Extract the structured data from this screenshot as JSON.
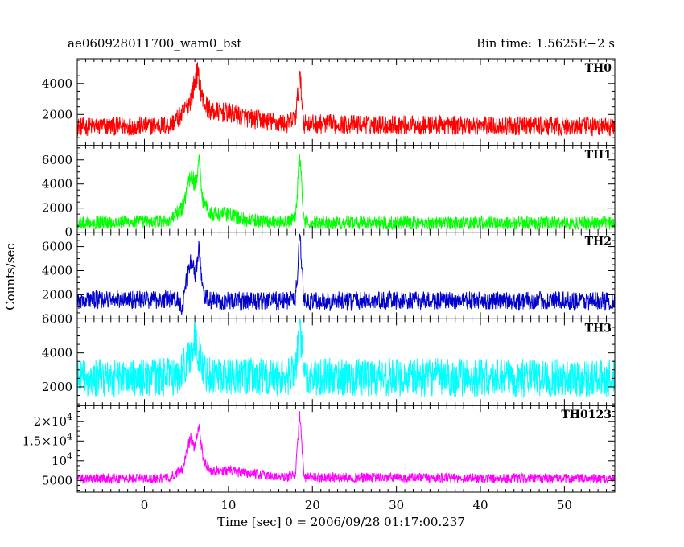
{
  "chart_data": {
    "type": "line",
    "title_left": "ae060928011700_wam0_bst",
    "title_right": "Bin time: 1.5625E−2 s",
    "xlabel": "Time [sec] 0 = 2006/09/28 01:17:00.237",
    "ylabel": "Counts/sec",
    "xlim": [
      -8,
      56
    ],
    "x_ticks": [
      0,
      10,
      20,
      30,
      40,
      50
    ],
    "x_tick_labels": [
      "0",
      "10",
      "20",
      "30",
      "40",
      "50"
    ],
    "panels": [
      {
        "name": "TH0",
        "color": "#ff0000",
        "ylim": [
          0,
          5600
        ],
        "y_ticks": [
          2000,
          4000
        ],
        "y_tick_labels": [
          {
            "mantissa": "2000",
            "exp": ""
          },
          {
            "mantissa": "4000",
            "exp": ""
          }
        ],
        "profile": [
          [
            -8,
            1200
          ],
          [
            3,
            1300
          ],
          [
            4.5,
            2000
          ],
          [
            5.5,
            3000
          ],
          [
            6.3,
            4700
          ],
          [
            7,
            2800
          ],
          [
            8,
            2200
          ],
          [
            10,
            2100
          ],
          [
            12,
            1800
          ],
          [
            14,
            1600
          ],
          [
            17,
            1400
          ],
          [
            18,
            1800
          ],
          [
            18.5,
            4500
          ],
          [
            19,
            1400
          ],
          [
            56,
            1200
          ]
        ],
        "noise": 700
      },
      {
        "name": "TH1",
        "color": "#00ff00",
        "ylim": [
          0,
          7200
        ],
        "y_ticks": [
          0,
          2000,
          4000,
          6000
        ],
        "y_tick_labels": [
          {
            "mantissa": "0",
            "exp": ""
          },
          {
            "mantissa": "2000",
            "exp": ""
          },
          {
            "mantissa": "4000",
            "exp": ""
          },
          {
            "mantissa": "6000",
            "exp": ""
          }
        ],
        "profile": [
          [
            -8,
            800
          ],
          [
            3,
            900
          ],
          [
            4.5,
            2000
          ],
          [
            5.5,
            4800
          ],
          [
            6,
            4000
          ],
          [
            6.5,
            5800
          ],
          [
            7,
            2500
          ],
          [
            8,
            1500
          ],
          [
            10,
            1500
          ],
          [
            12,
            1000
          ],
          [
            17,
            800
          ],
          [
            18,
            1200
          ],
          [
            18.5,
            6500
          ],
          [
            19,
            800
          ],
          [
            56,
            750
          ]
        ],
        "noise": 650
      },
      {
        "name": "TH2",
        "color": "#0000cc",
        "ylim": [
          0,
          7200
        ],
        "y_ticks": [
          2000,
          4000,
          6000
        ],
        "y_tick_labels": [
          {
            "mantissa": "2000",
            "exp": ""
          },
          {
            "mantissa": "4000",
            "exp": ""
          },
          {
            "mantissa": "6000",
            "exp": ""
          }
        ],
        "profile": [
          [
            -8,
            1600
          ],
          [
            4,
            1600
          ],
          [
            4.5,
            1000
          ],
          [
            5.5,
            5000
          ],
          [
            6,
            3500
          ],
          [
            6.5,
            5800
          ],
          [
            7,
            1800
          ],
          [
            8,
            1500
          ],
          [
            17,
            1500
          ],
          [
            18,
            1800
          ],
          [
            18.5,
            6500
          ],
          [
            19,
            1500
          ],
          [
            56,
            1500
          ]
        ],
        "noise": 900
      },
      {
        "name": "TH3",
        "color": "#00ffff",
        "ylim": [
          900,
          6000
        ],
        "y_ticks": [
          2000,
          4000,
          6000
        ],
        "y_tick_labels": [
          {
            "mantissa": "2000",
            "exp": ""
          },
          {
            "mantissa": "4000",
            "exp": ""
          },
          {
            "mantissa": "6000",
            "exp": ""
          }
        ],
        "profile": [
          [
            -8,
            2500
          ],
          [
            4,
            2600
          ],
          [
            5,
            3500
          ],
          [
            6,
            4600
          ],
          [
            6.5,
            4000
          ],
          [
            7,
            3000
          ],
          [
            8,
            2700
          ],
          [
            17,
            2500
          ],
          [
            18,
            3200
          ],
          [
            18.5,
            5500
          ],
          [
            19,
            2600
          ],
          [
            56,
            2500
          ]
        ],
        "noise": 1300
      },
      {
        "name": "TH0123",
        "color": "#ff00ff",
        "ylim": [
          2000,
          24000
        ],
        "y_ticks": [
          5000,
          10000,
          15000,
          20000
        ],
        "y_tick_labels": [
          {
            "mantissa": "5000",
            "exp": ""
          },
          {
            "mantissa": "10",
            "exp": "4"
          },
          {
            "mantissa": "1.5×10",
            "exp": "4"
          },
          {
            "mantissa": "2×10",
            "exp": "4"
          }
        ],
        "profile": [
          [
            -8,
            5500
          ],
          [
            3,
            5600
          ],
          [
            4.5,
            8000
          ],
          [
            5.5,
            16000
          ],
          [
            6,
            13000
          ],
          [
            6.5,
            19000
          ],
          [
            7,
            10000
          ],
          [
            8,
            7500
          ],
          [
            10,
            7500
          ],
          [
            12,
            6800
          ],
          [
            17,
            5800
          ],
          [
            18,
            7000
          ],
          [
            18.5,
            22000
          ],
          [
            19,
            5800
          ],
          [
            56,
            5400
          ]
        ],
        "noise": 1400
      }
    ]
  }
}
